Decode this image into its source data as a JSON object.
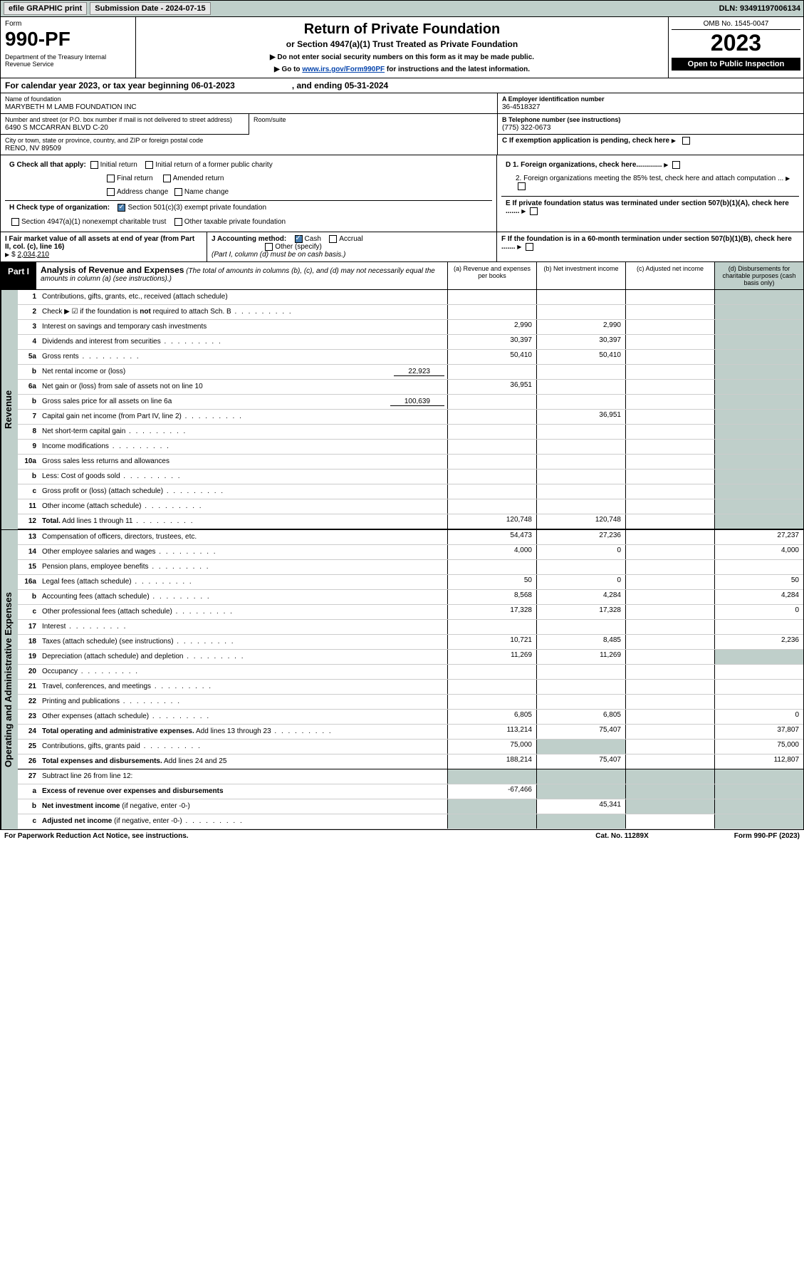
{
  "top": {
    "efile_btn": "efile GRAPHIC print",
    "sub_label": "Submission Date - 2024-07-15",
    "dln": "DLN: 93491197006134"
  },
  "header": {
    "form_word": "Form",
    "form_no": "990-PF",
    "dept": "Department of the Treasury\nInternal Revenue Service",
    "omb": "OMB No. 1545-0047",
    "year": "2023",
    "inspection": "Open to Public Inspection",
    "title": "Return of Private Foundation",
    "subtitle": "or Section 4947(a)(1) Trust Treated as Private Foundation",
    "note1": "▶ Do not enter social security numbers on this form as it may be made public.",
    "note2_pre": "▶ Go to ",
    "note2_link": "www.irs.gov/Form990PF",
    "note2_post": " for instructions and the latest information."
  },
  "cal": {
    "pre": "For calendar year 2023, or tax year beginning 06-01-2023",
    "post": ", and ending 05-31-2024"
  },
  "org": {
    "name_label": "Name of foundation",
    "name": "MARYBETH M LAMB FOUNDATION INC",
    "ein_label": "A Employer identification number",
    "ein": "36-4518327",
    "addr_label": "Number and street (or P.O. box number if mail is not delivered to street address)",
    "addr": "6490 S MCCARRAN BLVD C-20",
    "room_label": "Room/suite",
    "phone_label": "B Telephone number (see instructions)",
    "phone": "(775) 322-0673",
    "city_label": "City or town, state or province, country, and ZIP or foreign postal code",
    "city": "RENO, NV  89509",
    "c_label": "C If exemption application is pending, check here"
  },
  "checks": {
    "g": "G Check all that apply:",
    "g1": "Initial return",
    "g2": "Initial return of a former public charity",
    "g3": "Final return",
    "g4": "Amended return",
    "g5": "Address change",
    "g6": "Name change",
    "h": "H Check type of organization:",
    "h1": "Section 501(c)(3) exempt private foundation",
    "h2": "Section 4947(a)(1) nonexempt charitable trust",
    "h3": "Other taxable private foundation",
    "d1": "D 1. Foreign organizations, check here.............",
    "d2": "2. Foreign organizations meeting the 85% test, check here and attach computation ...",
    "e": "E  If private foundation status was terminated under section 507(b)(1)(A), check here .......",
    "f": "F  If the foundation is in a 60-month termination under section 507(b)(1)(B), check here .......",
    "i_label": "I Fair market value of all assets at end of year (from Part II, col. (c), line 16)",
    "i_val": "2,034,210",
    "j": "J Accounting method:",
    "j1": "Cash",
    "j2": "Accrual",
    "j3": "Other (specify)",
    "j_note": "(Part I, column (d) must be on cash basis.)"
  },
  "part1": {
    "label": "Part I",
    "title": "Analysis of Revenue and Expenses",
    "note": "(The total of amounts in columns (b), (c), and (d) may not necessarily equal the amounts in column (a) (see instructions).)",
    "col_a": "(a)  Revenue and expenses per books",
    "col_b": "(b)  Net investment income",
    "col_c": "(c)  Adjusted net income",
    "col_d": "(d)  Disbursements for charitable purposes (cash basis only)"
  },
  "sides": {
    "rev": "Revenue",
    "exp": "Operating and Administrative Expenses"
  },
  "rows": [
    {
      "n": "1",
      "d": "Contributions, gifts, grants, etc., received (attach schedule)"
    },
    {
      "n": "2",
      "d": "Check ▶ ☑ if the foundation is <b>not</b> required to attach Sch. B",
      "dotted": true
    },
    {
      "n": "3",
      "d": "Interest on savings and temporary cash investments",
      "a": "2,990",
      "b": "2,990"
    },
    {
      "n": "4",
      "d": "Dividends and interest from securities",
      "dotted": true,
      "a": "30,397",
      "b": "30,397"
    },
    {
      "n": "5a",
      "d": "Gross rents",
      "dotted": true,
      "a": "50,410",
      "b": "50,410"
    },
    {
      "n": "b",
      "d": "Net rental income or (loss)",
      "inline": "22,923"
    },
    {
      "n": "6a",
      "d": "Net gain or (loss) from sale of assets not on line 10",
      "a": "36,951"
    },
    {
      "n": "b",
      "d": "Gross sales price for all assets on line 6a",
      "inline": "100,639"
    },
    {
      "n": "7",
      "d": "Capital gain net income (from Part IV, line 2)",
      "dotted": true,
      "b": "36,951"
    },
    {
      "n": "8",
      "d": "Net short-term capital gain",
      "dotted": true
    },
    {
      "n": "9",
      "d": "Income modifications",
      "dotted": true
    },
    {
      "n": "10a",
      "d": "Gross sales less returns and allowances"
    },
    {
      "n": "b",
      "d": "Less: Cost of goods sold",
      "dotted": true
    },
    {
      "n": "c",
      "d": "Gross profit or (loss) (attach schedule)",
      "dotted": true
    },
    {
      "n": "11",
      "d": "Other income (attach schedule)",
      "dotted": true
    },
    {
      "n": "12",
      "d": "<b>Total.</b> Add lines 1 through 11",
      "dotted": true,
      "a": "120,748",
      "b": "120,748",
      "end": true
    }
  ],
  "exp_rows": [
    {
      "n": "13",
      "d": "Compensation of officers, directors, trustees, etc.",
      "a": "54,473",
      "b": "27,236",
      "dd": "27,237"
    },
    {
      "n": "14",
      "d": "Other employee salaries and wages",
      "dotted": true,
      "a": "4,000",
      "b": "0",
      "dd": "4,000"
    },
    {
      "n": "15",
      "d": "Pension plans, employee benefits",
      "dotted": true
    },
    {
      "n": "16a",
      "d": "Legal fees (attach schedule)",
      "dotted": true,
      "a": "50",
      "b": "0",
      "dd": "50"
    },
    {
      "n": "b",
      "d": "Accounting fees (attach schedule)",
      "dotted": true,
      "a": "8,568",
      "b": "4,284",
      "dd": "4,284"
    },
    {
      "n": "c",
      "d": "Other professional fees (attach schedule)",
      "dotted": true,
      "a": "17,328",
      "b": "17,328",
      "dd": "0"
    },
    {
      "n": "17",
      "d": "Interest",
      "dotted": true
    },
    {
      "n": "18",
      "d": "Taxes (attach schedule) (see instructions)",
      "dotted": true,
      "a": "10,721",
      "b": "8,485",
      "dd": "2,236"
    },
    {
      "n": "19",
      "d": "Depreciation (attach schedule) and depletion",
      "dotted": true,
      "a": "11,269",
      "b": "11,269",
      "dgrey": true
    },
    {
      "n": "20",
      "d": "Occupancy",
      "dotted": true
    },
    {
      "n": "21",
      "d": "Travel, conferences, and meetings",
      "dotted": true
    },
    {
      "n": "22",
      "d": "Printing and publications",
      "dotted": true
    },
    {
      "n": "23",
      "d": "Other expenses (attach schedule)",
      "dotted": true,
      "a": "6,805",
      "b": "6,805",
      "dd": "0"
    },
    {
      "n": "24",
      "d": "<b>Total operating and administrative expenses.</b> Add lines 13 through 23",
      "dotted": true,
      "a": "113,214",
      "b": "75,407",
      "dd": "37,807"
    },
    {
      "n": "25",
      "d": "Contributions, gifts, grants paid",
      "dotted": true,
      "a": "75,000",
      "bgrey": true,
      "dd": "75,000"
    },
    {
      "n": "26",
      "d": "<b>Total expenses and disbursements.</b> Add lines 24 and 25",
      "a": "188,214",
      "b": "75,407",
      "dd": "112,807",
      "end": true
    },
    {
      "n": "27",
      "d": "Subtract line 26 from line 12:",
      "allgrey": true
    },
    {
      "n": "a",
      "d": "<b>Excess of revenue over expenses and disbursements</b>",
      "a": "-67,466",
      "bgrey": true,
      "cgrey": true,
      "dgrey": true
    },
    {
      "n": "b",
      "d": "<b>Net investment income</b> (if negative, enter -0-)",
      "agrey": true,
      "b": "45,341",
      "cgrey": true,
      "dgrey": true
    },
    {
      "n": "c",
      "d": "<b>Adjusted net income</b> (if negative, enter -0-)",
      "dotted": true,
      "agrey": true,
      "bgrey": true,
      "dgrey": true
    }
  ],
  "footer": {
    "left": "For Paperwork Reduction Act Notice, see instructions.",
    "cat": "Cat. No. 11289X",
    "form": "Form 990-PF (2023)"
  },
  "colors": {
    "teal": "#bfcfca",
    "link": "#0645ad"
  }
}
